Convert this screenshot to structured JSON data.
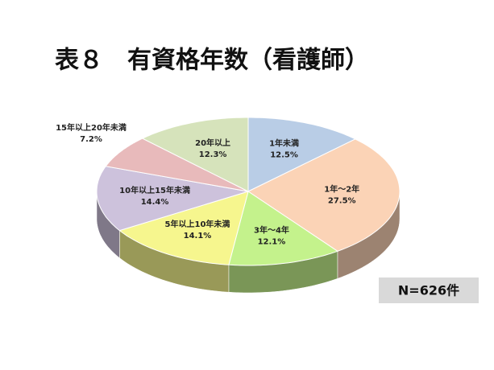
{
  "chart_data": {
    "type": "pie",
    "title": "表８　有資格年数（看護師）",
    "annotation": "N=626件",
    "categories": [
      "1年未満",
      "1年～2年",
      "3年～4年",
      "5年以上10年未満",
      "10年以上15年未満",
      "15年以上20年未満",
      "20年以上"
    ],
    "values": [
      12.5,
      27.5,
      12.1,
      14.1,
      14.4,
      7.2,
      12.3
    ],
    "value_labels": [
      "12.5%",
      "27.5%",
      "12.1%",
      "14.1%",
      "14.4%",
      "7.2%",
      "12.3%"
    ],
    "colors": [
      "#b9cde6",
      "#fbd3b6",
      "#c4f28c",
      "#f6f68e",
      "#cdc2dc",
      "#e8babb",
      "#d6e3bb"
    ]
  }
}
